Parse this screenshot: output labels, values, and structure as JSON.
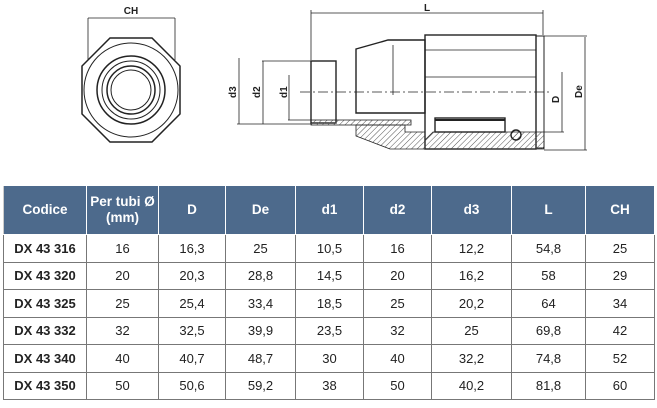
{
  "drawing": {
    "labels": {
      "ch": "CH",
      "l": "L",
      "d3": "d3",
      "d2": "d2",
      "d1": "d1",
      "d": "D",
      "de": "De"
    }
  },
  "table": {
    "headers": [
      "Codice",
      "Per tubi Ø (mm)",
      "D",
      "De",
      "d1",
      "d2",
      "d3",
      "L",
      "CH"
    ],
    "header_color": "#4d6a8c",
    "rows": [
      [
        "DX 43 316",
        "16",
        "16,3",
        "25",
        "10,5",
        "16",
        "12,2",
        "54,8",
        "25"
      ],
      [
        "DX 43 320",
        "20",
        "20,3",
        "28,8",
        "14,5",
        "20",
        "16,2",
        "58",
        "29"
      ],
      [
        "DX 43 325",
        "25",
        "25,4",
        "33,4",
        "18,5",
        "25",
        "20,2",
        "64",
        "34"
      ],
      [
        "DX 43 332",
        "32",
        "32,5",
        "39,9",
        "23,5",
        "32",
        "25",
        "69,8",
        "42"
      ],
      [
        "DX 43 340",
        "40",
        "40,7",
        "48,7",
        "30",
        "40",
        "32,2",
        "74,8",
        "52"
      ],
      [
        "DX 43 350",
        "50",
        "50,6",
        "59,2",
        "38",
        "50",
        "40,2",
        "81,8",
        "60"
      ]
    ]
  }
}
